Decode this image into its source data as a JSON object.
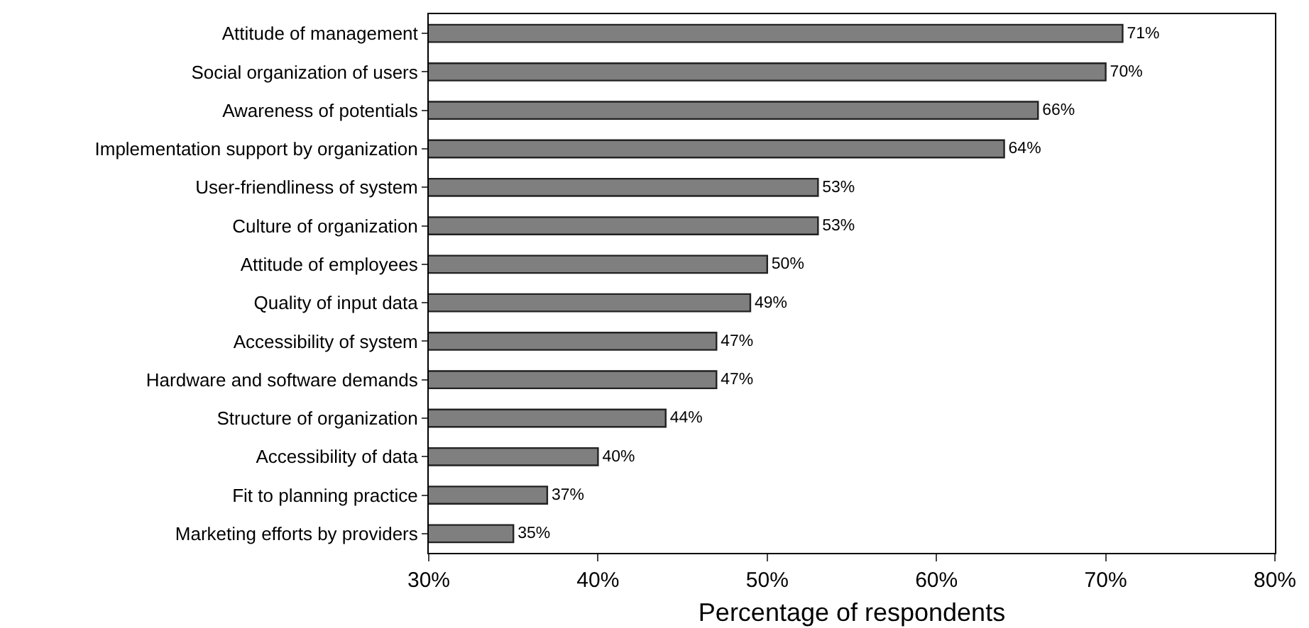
{
  "chart_data": {
    "type": "bar",
    "orientation": "horizontal",
    "xlabel": "Percentage of respondents",
    "categories": [
      "Attitude of management",
      "Social organization of users",
      "Awareness of potentials",
      "Implementation support by organization",
      "User-friendliness of system",
      "Culture of organization",
      "Attitude of employees",
      "Quality of input data",
      "Accessibility of system",
      "Hardware and software demands",
      "Structure of organization",
      "Accessibility of data",
      "Fit to planning practice",
      "Marketing efforts by providers"
    ],
    "values": [
      71,
      70,
      66,
      64,
      53,
      53,
      50,
      49,
      47,
      47,
      44,
      40,
      37,
      35
    ],
    "value_labels": [
      "71%",
      "70%",
      "66%",
      "64%",
      "53%",
      "53%",
      "50%",
      "49%",
      "47%",
      "47%",
      "44%",
      "40%",
      "37%",
      "35%"
    ],
    "color": "#7f7f7f",
    "xlim": [
      30,
      80
    ],
    "xticks": [
      {
        "value": 30,
        "label": "30%"
      },
      {
        "value": 40,
        "label": "40%"
      },
      {
        "value": 50,
        "label": "50%"
      },
      {
        "value": 60,
        "label": "60%"
      },
      {
        "value": 70,
        "label": "70%"
      },
      {
        "value": 80,
        "label": "80%"
      }
    ],
    "grid": false,
    "legend": false
  }
}
